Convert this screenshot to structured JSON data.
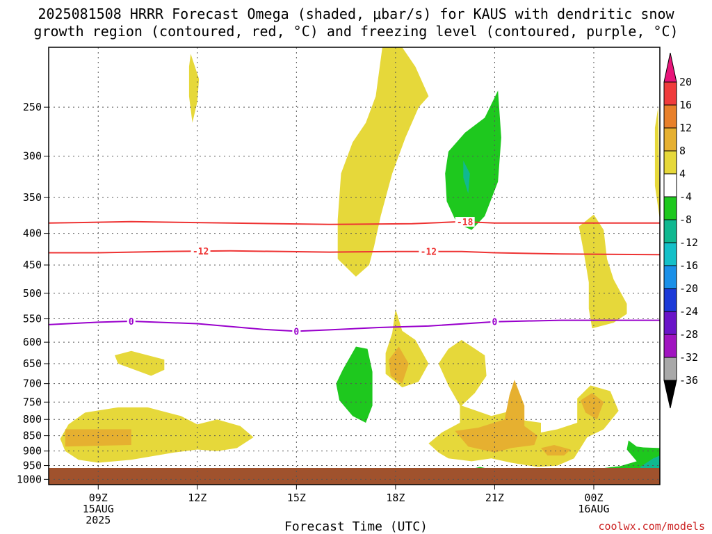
{
  "title_line1": "2025081508 HRRR Forecast Omega (shaded, μbar/s) for KAUS with dendritic snow",
  "title_line2": "growth region (contoured, red, °C) and freezing level (contoured, purple, °C)",
  "credit": "coolwx.com/models",
  "colors": {
    "background": "#ffffff",
    "ground": "#a0522d",
    "dgz_contour": "#ee3333",
    "freezing_contour": "#9900cc"
  },
  "chart_data": {
    "type": "heatmap",
    "xlabel": "Forecast Time (UTC)",
    "ylabel": "",
    "x_ticks": [
      {
        "hour": 9,
        "lines": [
          "09Z",
          "15AUG",
          "2025"
        ]
      },
      {
        "hour": 12,
        "lines": [
          "12Z"
        ]
      },
      {
        "hour": 15,
        "lines": [
          "15Z"
        ]
      },
      {
        "hour": 18,
        "lines": [
          "18Z"
        ]
      },
      {
        "hour": 21,
        "lines": [
          "21Z"
        ]
      },
      {
        "hour": 24,
        "lines": [
          "00Z",
          "16AUG"
        ]
      }
    ],
    "x_range_hours": [
      7.5,
      26.0
    ],
    "y_scale": "pressure (mb), inverted",
    "y_range_mb": [
      1020,
      200
    ],
    "y_ticks": [
      250,
      300,
      350,
      400,
      450,
      500,
      550,
      600,
      650,
      700,
      750,
      800,
      850,
      900,
      950,
      1000
    ],
    "grid": true,
    "colorbar": {
      "labels": [
        "20",
        "16",
        "12",
        "8",
        "4",
        "-4",
        "-8",
        "-12",
        "-16",
        "-20",
        "-24",
        "-28",
        "-32",
        "-36"
      ],
      "colors": [
        "#e8157a",
        "#f03c3c",
        "#e8802a",
        "#e6b030",
        "#e6d83a",
        "#ffffff",
        "#1ec81e",
        "#10b890",
        "#14c0c8",
        "#1a90e8",
        "#1c3ad8",
        "#6a14c8",
        "#a014c0",
        "#a8a8a8",
        "#000000"
      ]
    },
    "contours": [
      {
        "kind": "dgz",
        "level_label": "-18",
        "points": [
          [
            7.5,
            385
          ],
          [
            10,
            383
          ],
          [
            13,
            385
          ],
          [
            16,
            387
          ],
          [
            18.5,
            386
          ],
          [
            20,
            383
          ],
          [
            21,
            385
          ],
          [
            23,
            385
          ],
          [
            26,
            385
          ]
        ],
        "labels_at_hours": [
          20.1
        ]
      },
      {
        "kind": "dgz",
        "level_label": "-12",
        "points": [
          [
            7.5,
            430
          ],
          [
            9,
            430
          ],
          [
            11,
            428
          ],
          [
            13,
            427
          ],
          [
            16,
            429
          ],
          [
            18,
            428
          ],
          [
            20,
            428
          ],
          [
            21,
            430
          ],
          [
            23,
            432
          ],
          [
            26,
            433
          ]
        ],
        "labels_at_hours": [
          12.1,
          19.0
        ]
      },
      {
        "kind": "freezing",
        "level_label": "0",
        "points": [
          [
            7.5,
            562
          ],
          [
            9,
            557
          ],
          [
            10,
            555
          ],
          [
            12,
            560
          ],
          [
            14,
            572
          ],
          [
            15,
            576
          ],
          [
            16,
            573
          ],
          [
            17.5,
            568
          ],
          [
            19,
            565
          ],
          [
            21,
            556
          ],
          [
            23,
            553
          ],
          [
            26,
            553
          ]
        ],
        "labels_at_hours": [
          10.0,
          15.0,
          21.0
        ]
      }
    ],
    "omega_regions": [
      {
        "value": "4 to 8",
        "color": "#e6d83a",
        "points": [
          [
            11.8,
            205
          ],
          [
            12.05,
            225
          ],
          [
            12.0,
            245
          ],
          [
            11.85,
            265
          ],
          [
            11.75,
            240
          ],
          [
            11.75,
            215
          ]
        ]
      },
      {
        "value": "4 to 8",
        "color": "#e6d83a",
        "points": [
          [
            17.6,
            200
          ],
          [
            18.2,
            200
          ],
          [
            18.6,
            215
          ],
          [
            19.0,
            240
          ],
          [
            18.7,
            250
          ],
          [
            18.3,
            280
          ],
          [
            17.9,
            320
          ],
          [
            17.55,
            375
          ],
          [
            17.35,
            420
          ],
          [
            17.2,
            450
          ],
          [
            16.8,
            470
          ],
          [
            16.25,
            440
          ],
          [
            16.25,
            380
          ],
          [
            16.35,
            320
          ],
          [
            16.7,
            285
          ],
          [
            17.1,
            265
          ],
          [
            17.4,
            240
          ]
        ]
      },
      {
        "value": "4 to 8",
        "color": "#e6d83a",
        "points": [
          [
            25.95,
            250
          ],
          [
            26.0,
            380
          ],
          [
            25.85,
            335
          ],
          [
            25.85,
            270
          ]
        ]
      },
      {
        "value": "4 to 8",
        "color": "#e6d83a",
        "points": [
          [
            24.0,
            373
          ],
          [
            24.3,
            395
          ],
          [
            24.4,
            440
          ],
          [
            24.6,
            475
          ],
          [
            25.0,
            520
          ],
          [
            25.0,
            540
          ],
          [
            24.6,
            558
          ],
          [
            23.95,
            570
          ],
          [
            23.85,
            530
          ],
          [
            23.85,
            480
          ],
          [
            23.7,
            430
          ],
          [
            23.55,
            390
          ]
        ]
      },
      {
        "value": "4 to 8",
        "color": "#e6d83a",
        "points": [
          [
            18.0,
            530
          ],
          [
            18.2,
            575
          ],
          [
            18.6,
            595
          ],
          [
            19.0,
            650
          ],
          [
            18.7,
            695
          ],
          [
            18.2,
            710
          ],
          [
            17.7,
            675
          ],
          [
            17.7,
            625
          ],
          [
            17.9,
            580
          ]
        ]
      },
      {
        "value": "4 to 8",
        "color": "#e6d83a",
        "points": [
          [
            10.0,
            620
          ],
          [
            11.0,
            640
          ],
          [
            11.0,
            665
          ],
          [
            10.6,
            680
          ],
          [
            9.6,
            650
          ],
          [
            9.5,
            630
          ]
        ]
      },
      {
        "value": "4 to 8",
        "color": "#e6d83a",
        "points": [
          [
            20.0,
            595
          ],
          [
            20.7,
            630
          ],
          [
            20.75,
            680
          ],
          [
            20.4,
            725
          ],
          [
            20.0,
            760
          ],
          [
            20.9,
            790
          ],
          [
            21.5,
            775
          ],
          [
            21.7,
            800
          ],
          [
            22.4,
            810
          ],
          [
            22.4,
            840
          ],
          [
            22.9,
            830
          ],
          [
            23.5,
            810
          ],
          [
            23.5,
            740
          ],
          [
            23.9,
            705
          ],
          [
            24.5,
            720
          ],
          [
            24.75,
            775
          ],
          [
            24.3,
            830
          ],
          [
            23.8,
            855
          ],
          [
            23.4,
            925
          ],
          [
            22.9,
            950
          ],
          [
            22.3,
            955
          ],
          [
            21.5,
            940
          ],
          [
            20.9,
            925
          ],
          [
            20.3,
            935
          ],
          [
            19.6,
            925
          ],
          [
            19.3,
            905
          ],
          [
            19.0,
            875
          ],
          [
            19.4,
            840
          ],
          [
            19.95,
            810
          ],
          [
            19.95,
            760
          ],
          [
            19.6,
            705
          ],
          [
            19.3,
            650
          ],
          [
            19.6,
            615
          ]
        ]
      },
      {
        "value": "4 to 8",
        "color": "#e6d83a",
        "points": [
          [
            8.0,
            900
          ],
          [
            7.85,
            860
          ],
          [
            8.1,
            815
          ],
          [
            8.6,
            780
          ],
          [
            9.6,
            765
          ],
          [
            10.5,
            765
          ],
          [
            11.5,
            790
          ],
          [
            12.0,
            815
          ],
          [
            12.6,
            800
          ],
          [
            13.3,
            820
          ],
          [
            13.7,
            855
          ],
          [
            13.2,
            890
          ],
          [
            12.6,
            900
          ],
          [
            12.0,
            895
          ],
          [
            11.3,
            905
          ],
          [
            10.0,
            930
          ],
          [
            9.0,
            940
          ],
          [
            8.4,
            930
          ]
        ]
      },
      {
        "value": "8 to 12",
        "color": "#e6b030",
        "points": [
          [
            8.0,
            830
          ],
          [
            10.0,
            830
          ],
          [
            10.0,
            880
          ],
          [
            8.0,
            885
          ]
        ]
      },
      {
        "value": "8 to 12",
        "color": "#e6b030",
        "points": [
          [
            17.8,
            640
          ],
          [
            18.1,
            610
          ],
          [
            18.4,
            650
          ],
          [
            18.2,
            700
          ],
          [
            17.85,
            680
          ]
        ]
      },
      {
        "value": "8 to 12",
        "color": "#e6b030",
        "points": [
          [
            21.6,
            690
          ],
          [
            21.9,
            760
          ],
          [
            21.9,
            820
          ],
          [
            22.3,
            850
          ],
          [
            22.2,
            880
          ],
          [
            21.5,
            890
          ],
          [
            21.0,
            905
          ],
          [
            20.2,
            885
          ],
          [
            19.8,
            835
          ],
          [
            20.5,
            825
          ],
          [
            21.3,
            800
          ],
          [
            21.45,
            730
          ]
        ]
      },
      {
        "value": "8 to 12",
        "color": "#e6b030",
        "points": [
          [
            22.4,
            890
          ],
          [
            22.8,
            880
          ],
          [
            23.3,
            895
          ],
          [
            23.1,
            915
          ],
          [
            22.6,
            915
          ]
        ]
      },
      {
        "value": "8 to 12",
        "color": "#e6b030",
        "points": [
          [
            23.95,
            725
          ],
          [
            24.3,
            750
          ],
          [
            24.1,
            800
          ],
          [
            23.75,
            780
          ],
          [
            23.6,
            745
          ]
        ]
      },
      {
        "value": "-4 to -8",
        "color": "#1ec81e",
        "points": [
          [
            21.1,
            235
          ],
          [
            21.2,
            280
          ],
          [
            21.1,
            330
          ],
          [
            20.7,
            375
          ],
          [
            20.3,
            395
          ],
          [
            19.85,
            385
          ],
          [
            19.55,
            355
          ],
          [
            19.5,
            320
          ],
          [
            19.6,
            295
          ],
          [
            20.1,
            275
          ],
          [
            20.7,
            260
          ]
        ]
      },
      {
        "value": "-4 to -8",
        "color": "#1ec81e",
        "points": [
          [
            16.8,
            610
          ],
          [
            17.15,
            615
          ],
          [
            17.3,
            670
          ],
          [
            17.3,
            760
          ],
          [
            17.1,
            810
          ],
          [
            16.7,
            790
          ],
          [
            16.3,
            745
          ],
          [
            16.2,
            700
          ],
          [
            16.4,
            665
          ]
        ]
      },
      {
        "value": "-4 to -8",
        "color": "#1ec81e",
        "points": [
          [
            18.0,
            973
          ],
          [
            19.5,
            970
          ],
          [
            20.2,
            964
          ],
          [
            20.55,
            955
          ],
          [
            21.0,
            965
          ],
          [
            22.0,
            970
          ],
          [
            23.0,
            970
          ],
          [
            24.0,
            963
          ],
          [
            24.8,
            952
          ],
          [
            25.3,
            935
          ],
          [
            25.0,
            895
          ],
          [
            25.05,
            865
          ],
          [
            25.3,
            885
          ],
          [
            25.5,
            888
          ],
          [
            26.0,
            890
          ],
          [
            26.0,
            990
          ],
          [
            18.0,
            990
          ]
        ]
      },
      {
        "value": "-8 to -12",
        "color": "#10b890",
        "points": [
          [
            20.05,
            305
          ],
          [
            20.25,
            320
          ],
          [
            20.2,
            345
          ],
          [
            20.05,
            325
          ]
        ]
      },
      {
        "value": "-8 to -12",
        "color": "#10b890",
        "points": [
          [
            25.4,
            955
          ],
          [
            25.8,
            925
          ],
          [
            26.0,
            915
          ],
          [
            26.0,
            985
          ],
          [
            25.5,
            978
          ]
        ]
      }
    ]
  }
}
